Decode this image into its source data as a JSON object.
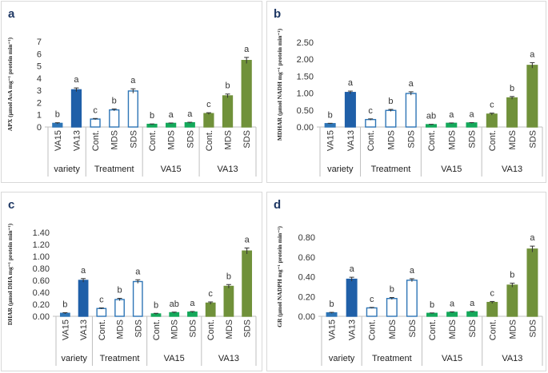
{
  "colors": {
    "va15_bar": "#2e75b6",
    "va13_bar": "#1f5fa8",
    "treatment_bar": "#ffffff",
    "treatment_stroke": "#2e75b6",
    "va15_group_bar": "#14a85a",
    "va13_group_bar": "#70913a",
    "panel_label": "#1f3864"
  },
  "chart_data": [
    {
      "type": "bar",
      "panel_label": "a",
      "ylabel": "APX (µmol AsA mg⁻¹ protein min⁻¹)",
      "ylim": [
        0,
        7
      ],
      "yticks": [
        "0",
        "1",
        "2",
        "3",
        "4",
        "5",
        "6",
        "7"
      ],
      "categories": [
        "VA15",
        "VA13",
        "Cont.",
        "MDS",
        "SDS",
        "Cont.",
        "MDS",
        "SDS",
        "Cont.",
        "MDS",
        "SDS"
      ],
      "values": [
        0.3,
        3.05,
        0.65,
        1.4,
        2.95,
        0.22,
        0.3,
        0.35,
        1.1,
        2.55,
        5.45
      ],
      "errors": [
        0.05,
        0.15,
        0.05,
        0.08,
        0.18,
        0.03,
        0.03,
        0.04,
        0.07,
        0.15,
        0.25
      ],
      "significance": [
        "b",
        "a",
        "c",
        "b",
        "a",
        "b",
        "a",
        "a",
        "c",
        "b",
        "a"
      ],
      "groups": [
        "variety",
        "Treatment",
        "VA15",
        "VA13"
      ]
    },
    {
      "type": "bar",
      "panel_label": "b",
      "ylabel": "MDHAR (µmol NADH mg⁻¹ protein min⁻¹)",
      "ylim": [
        0,
        2.5
      ],
      "yticks": [
        "0.00",
        "0.50",
        "1.00",
        "1.50",
        "2.00",
        "2.50"
      ],
      "categories": [
        "VA15",
        "VA13",
        "Cont.",
        "MDS",
        "SDS",
        "Cont.",
        "MDS",
        "SDS",
        "Cont.",
        "MDS",
        "SDS"
      ],
      "values": [
        0.1,
        1.02,
        0.22,
        0.49,
        0.99,
        0.07,
        0.11,
        0.12,
        0.38,
        0.86,
        1.82
      ],
      "errors": [
        0.01,
        0.04,
        0.02,
        0.03,
        0.05,
        0.01,
        0.01,
        0.01,
        0.03,
        0.04,
        0.08
      ],
      "significance": [
        "b",
        "a",
        "c",
        "b",
        "a",
        "ab",
        "a",
        "a",
        "c",
        "b",
        "a"
      ],
      "groups": [
        "variety",
        "Treatment",
        "VA15",
        "VA13"
      ]
    },
    {
      "type": "bar",
      "panel_label": "c",
      "ylabel": "DHAR (µmol DHA mg⁻¹ protein min⁻¹)",
      "ylim": [
        0,
        1.4
      ],
      "yticks": [
        "0.00",
        "0.20",
        "0.40",
        "0.60",
        "0.80",
        "1.00",
        "1.20",
        "1.40"
      ],
      "categories": [
        "VA15",
        "VA13",
        "Cont.",
        "MDS",
        "SDS",
        "Cont.",
        "MDS",
        "SDS",
        "Cont.",
        "MDS",
        "SDS"
      ],
      "values": [
        0.05,
        0.6,
        0.13,
        0.28,
        0.58,
        0.04,
        0.06,
        0.07,
        0.22,
        0.5,
        1.09
      ],
      "errors": [
        0.01,
        0.03,
        0.01,
        0.02,
        0.03,
        0.01,
        0.01,
        0.01,
        0.02,
        0.03,
        0.05
      ],
      "significance": [
        "b",
        "a",
        "c",
        "b",
        "a",
        "b",
        "ab",
        "a",
        "c",
        "b",
        "a"
      ],
      "groups": [
        "variety",
        "Treatment",
        "VA15",
        "VA13"
      ]
    },
    {
      "type": "bar",
      "panel_label": "d",
      "ylabel": "GR (µmol NADPH mg⁻¹ protein min⁻¹)",
      "ylim": [
        0,
        0.8
      ],
      "yticks": [
        "0.00",
        "0.20",
        "0.40",
        "0.60",
        "0.80"
      ],
      "categories": [
        "VA15",
        "VA13",
        "Cont.",
        "MDS",
        "SDS",
        "Cont.",
        "MDS",
        "SDS",
        "Cont.",
        "MDS",
        "SDS"
      ],
      "values": [
        0.035,
        0.375,
        0.085,
        0.18,
        0.365,
        0.03,
        0.04,
        0.045,
        0.14,
        0.315,
        0.68
      ],
      "errors": [
        0.005,
        0.02,
        0.005,
        0.01,
        0.015,
        0.004,
        0.005,
        0.005,
        0.01,
        0.02,
        0.03
      ],
      "significance": [
        "b",
        "a",
        "c",
        "b",
        "a",
        "b",
        "a",
        "a",
        "c",
        "b",
        "a"
      ],
      "groups": [
        "variety",
        "Treatment",
        "VA15",
        "VA13"
      ]
    }
  ]
}
